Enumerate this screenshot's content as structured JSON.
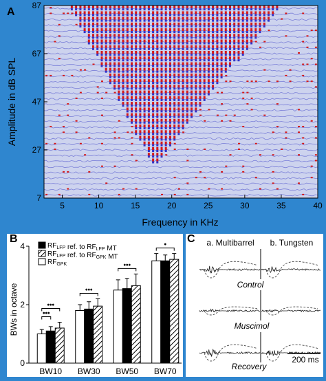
{
  "background_color": "#2f86cf",
  "panel_a": {
    "panel_label": "A",
    "plot_bg": "#cdd3ee",
    "ylabel": "Amplitude in dB SPL",
    "xlabel": "Frequency in KHz",
    "yticks": [
      "87",
      "67",
      "47",
      "27",
      "7"
    ],
    "xticks": [
      "5",
      "10",
      "15",
      "20",
      "25",
      "30",
      "35",
      "40"
    ],
    "colors": {
      "excitatory": "#d41a1a",
      "inhibitory": "#3232c8",
      "background_trace": "#7a7fd8"
    }
  },
  "chart_data": [
    {
      "type": "heatmap",
      "panel": "A",
      "xlabel": "Frequency in KHz",
      "ylabel": "Amplitude in dB SPL",
      "xlim": [
        2.5,
        40
      ],
      "ylim": [
        7,
        87
      ],
      "x_ticks": [
        5,
        10,
        15,
        20,
        25,
        30,
        35,
        40
      ],
      "y_ticks": [
        7,
        27,
        47,
        67,
        87
      ],
      "receptive_field": {
        "threshold_level": 20,
        "characteristic_frequency": 17.5,
        "edges_at_top_level": [
          6,
          35
        ]
      },
      "grid": false
    },
    {
      "type": "bar",
      "panel": "B",
      "categories": [
        "BW10",
        "BW30",
        "BW50",
        "BW70"
      ],
      "ylabel": "BWs in octave",
      "ylim": [
        0,
        4
      ],
      "y_ticks": [
        0,
        2,
        4
      ],
      "series": [
        {
          "name": "RF",
          "name_sub": "LFP",
          "name_suffix": " ref. to RF",
          "name_suffix_sub": "LFP",
          "name_end": " MT",
          "pattern": "solid-black",
          "values": [
            1.1,
            1.85,
            2.55,
            3.5
          ],
          "errors": [
            0.15,
            0.25,
            0.35,
            0.2
          ]
        },
        {
          "name": "RF",
          "name_sub": "LFP",
          "name_suffix": " ref. to RF",
          "name_suffix_sub": "GPK",
          "name_end": " MT",
          "pattern": "hatched",
          "values": [
            1.2,
            1.95,
            2.65,
            3.55
          ],
          "errors": [
            0.2,
            0.25,
            0.4,
            0.2
          ]
        },
        {
          "name": "RF",
          "name_sub": "GPK",
          "name_suffix": "",
          "name_suffix_sub": "",
          "name_end": "",
          "pattern": "white",
          "values": [
            1.0,
            1.8,
            2.5,
            3.5
          ],
          "errors": [
            0.15,
            0.2,
            0.35,
            0.25
          ]
        }
      ],
      "significance": [
        {
          "category": "BW10",
          "upper": "•••",
          "lower": "•••"
        },
        {
          "category": "BW30",
          "upper": "•••",
          "lower": ""
        },
        {
          "category": "BW50",
          "upper": "•••",
          "lower": ""
        },
        {
          "category": "BW70",
          "upper": "•",
          "lower": ""
        }
      ],
      "legend_placement": "top-left"
    },
    {
      "type": "line",
      "panel": "C",
      "columns": [
        "a. Multibarrel",
        "b. Tungsten"
      ],
      "conditions": [
        "Control",
        "Muscimol",
        "Recovery"
      ],
      "scale_bar": "200 ms"
    }
  ],
  "panel_b": {
    "panel_label": "B",
    "plot_bg": "#ffffff"
  },
  "panel_c": {
    "panel_label": "C",
    "plot_bg": "#ffffff"
  }
}
